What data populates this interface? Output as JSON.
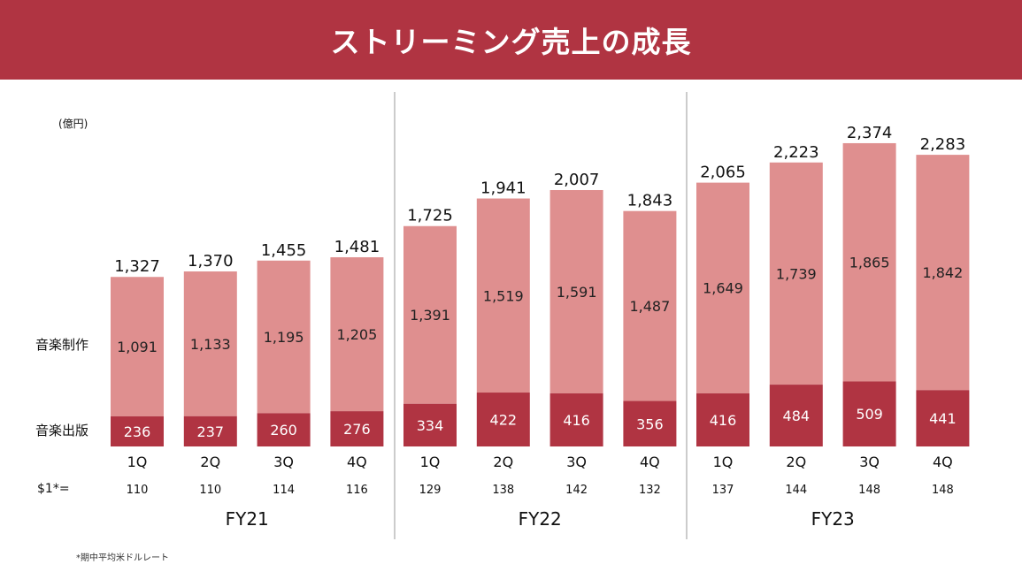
{
  "title": "ストリーミング売上の成長",
  "unit_label": "(億円)",
  "rate_label": "$1*=",
  "footnote": "*期中平均米ドルレート",
  "colors": {
    "banner": "#b03442",
    "production": "#df8f8f",
    "publishing": "#b03442",
    "divider": "#999999"
  },
  "chart_data": {
    "type": "bar",
    "stacked": true,
    "title": "ストリーミング売上の成長",
    "ylabel": "(億円)",
    "ylim": [
      0,
      2500
    ],
    "grid": false,
    "categories": [
      "1Q",
      "2Q",
      "3Q",
      "4Q",
      "1Q",
      "2Q",
      "3Q",
      "4Q",
      "1Q",
      "2Q",
      "3Q",
      "4Q"
    ],
    "groups": [
      {
        "label": "FY21",
        "count": 4
      },
      {
        "label": "FY22",
        "count": 4
      },
      {
        "label": "FY23",
        "count": 4
      }
    ],
    "series": [
      {
        "name": "音楽出版",
        "values": [
          236,
          237,
          260,
          276,
          334,
          422,
          416,
          356,
          416,
          484,
          509,
          441
        ]
      },
      {
        "name": "音楽制作",
        "values": [
          1091,
          1133,
          1195,
          1205,
          1391,
          1519,
          1591,
          1487,
          1649,
          1739,
          1865,
          1842
        ]
      }
    ],
    "totals": [
      1327,
      1370,
      1455,
      1481,
      1725,
      1941,
      2007,
      1843,
      2065,
      2223,
      2374,
      2283
    ],
    "exchange_rates": [
      110,
      110,
      114,
      116,
      129,
      138,
      142,
      132,
      137,
      144,
      148,
      148
    ]
  }
}
